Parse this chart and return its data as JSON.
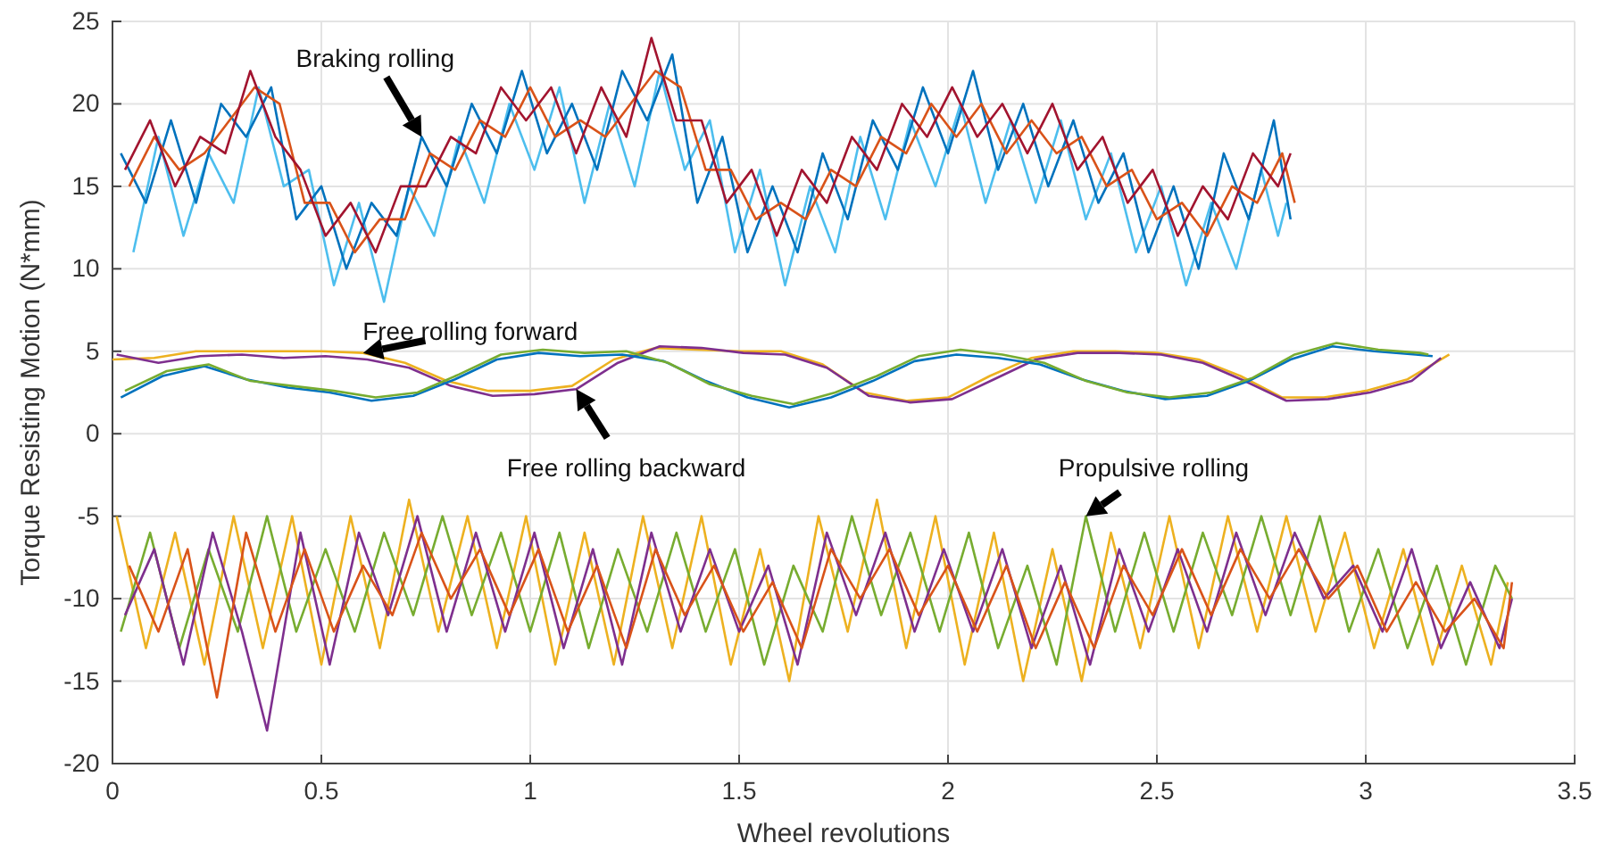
{
  "chart_data": {
    "type": "line",
    "xlabel": "Wheel revolutions",
    "ylabel": "Torque Resisting Motion (N*mm)",
    "xlim": [
      0,
      3.5
    ],
    "xticks": [
      0,
      0.5,
      1,
      1.5,
      2,
      2.5,
      3,
      3.5
    ],
    "ylim": [
      -20,
      25
    ],
    "yticks": [
      -20,
      -15,
      -10,
      -5,
      0,
      5,
      10,
      15,
      20,
      25
    ],
    "grid": true,
    "line_style": "solid",
    "marker": "none",
    "annotations": [
      {
        "text": "Braking rolling",
        "x": 0.74,
        "y": 18
      },
      {
        "text": "Free rolling forward",
        "x": 0.6,
        "y": 4.9
      },
      {
        "text": "Free rolling backward",
        "x": 1.11,
        "y": 2.7
      },
      {
        "text": "Propulsive rolling",
        "x": 2.33,
        "y": -5
      }
    ],
    "series": [
      {
        "color": "#4dbeee",
        "x": [
          0.05,
          0.11,
          0.17,
          0.23,
          0.29,
          0.35,
          0.41,
          0.47,
          0.53,
          0.59,
          0.65,
          0.71,
          0.77,
          0.83,
          0.89,
          0.95,
          1.01,
          1.07,
          1.13,
          1.19,
          1.25,
          1.31,
          1.37,
          1.43,
          1.49,
          1.55,
          1.61,
          1.67,
          1.73,
          1.79,
          1.85,
          1.91,
          1.97,
          2.03,
          2.09,
          2.15,
          2.21,
          2.27,
          2.33,
          2.39,
          2.45,
          2.51,
          2.57,
          2.63,
          2.69,
          2.75,
          2.79,
          2.81
        ],
        "values": [
          11,
          18,
          12,
          17,
          14,
          21,
          15,
          16,
          9,
          14,
          8,
          15,
          12,
          18,
          14,
          20,
          16,
          21,
          14,
          20,
          15,
          22,
          16,
          19,
          11,
          16,
          9,
          15,
          11,
          18,
          13,
          19,
          15,
          20,
          14,
          19,
          14,
          19,
          13,
          17,
          11,
          15,
          9,
          14,
          10,
          16,
          12,
          14
        ]
      },
      {
        "color": "#0072bd",
        "x": [
          0.02,
          0.08,
          0.14,
          0.2,
          0.26,
          0.32,
          0.38,
          0.44,
          0.5,
          0.56,
          0.62,
          0.68,
          0.74,
          0.8,
          0.86,
          0.92,
          0.98,
          1.04,
          1.1,
          1.16,
          1.22,
          1.28,
          1.34,
          1.4,
          1.46,
          1.52,
          1.58,
          1.64,
          1.7,
          1.76,
          1.82,
          1.88,
          1.94,
          2.0,
          2.06,
          2.12,
          2.18,
          2.24,
          2.3,
          2.36,
          2.42,
          2.48,
          2.54,
          2.6,
          2.66,
          2.72,
          2.78,
          2.82
        ],
        "values": [
          17,
          14,
          19,
          14,
          20,
          18,
          21,
          13,
          15,
          10,
          14,
          12,
          18,
          15,
          20,
          17,
          22,
          17,
          20,
          16,
          22,
          19,
          23,
          14,
          18,
          11,
          15,
          11,
          17,
          13,
          19,
          16,
          21,
          17,
          22,
          16,
          20,
          15,
          19,
          14,
          17,
          11,
          15,
          10,
          17,
          13,
          19,
          13
        ]
      },
      {
        "color": "#d95319",
        "x": [
          0.04,
          0.1,
          0.16,
          0.22,
          0.28,
          0.34,
          0.4,
          0.46,
          0.52,
          0.58,
          0.64,
          0.7,
          0.76,
          0.82,
          0.88,
          0.94,
          1.0,
          1.06,
          1.12,
          1.18,
          1.24,
          1.3,
          1.36,
          1.42,
          1.48,
          1.54,
          1.6,
          1.66,
          1.72,
          1.78,
          1.84,
          1.9,
          1.96,
          2.02,
          2.08,
          2.14,
          2.2,
          2.26,
          2.32,
          2.38,
          2.44,
          2.5,
          2.56,
          2.62,
          2.68,
          2.74,
          2.8,
          2.83
        ],
        "values": [
          15,
          18,
          16,
          17,
          19,
          21,
          20,
          14,
          14,
          11,
          13,
          13,
          17,
          16,
          19,
          18,
          21,
          18,
          19,
          18,
          20,
          22,
          21,
          16,
          16,
          13,
          14,
          13,
          16,
          15,
          18,
          17,
          20,
          18,
          20,
          17,
          19,
          17,
          18,
          15,
          16,
          13,
          14,
          12,
          15,
          14,
          17,
          14
        ]
      },
      {
        "color": "#a2142f",
        "x": [
          0.03,
          0.09,
          0.15,
          0.21,
          0.27,
          0.33,
          0.39,
          0.45,
          0.51,
          0.57,
          0.63,
          0.69,
          0.75,
          0.81,
          0.87,
          0.93,
          0.99,
          1.05,
          1.11,
          1.17,
          1.23,
          1.29,
          1.35,
          1.41,
          1.47,
          1.53,
          1.59,
          1.65,
          1.71,
          1.77,
          1.83,
          1.89,
          1.95,
          2.01,
          2.07,
          2.13,
          2.19,
          2.25,
          2.31,
          2.37,
          2.43,
          2.49,
          2.55,
          2.61,
          2.67,
          2.73,
          2.79,
          2.82
        ],
        "values": [
          16,
          19,
          15,
          18,
          17,
          22,
          18,
          16,
          12,
          14,
          11,
          15,
          15,
          18,
          17,
          21,
          19,
          21,
          17,
          21,
          18,
          24,
          19,
          19,
          14,
          16,
          12,
          16,
          14,
          18,
          16,
          20,
          18,
          21,
          18,
          20,
          17,
          20,
          16,
          18,
          14,
          16,
          12,
          15,
          13,
          17,
          15,
          17
        ]
      },
      {
        "color": "#edb120",
        "x": [
          0,
          0.1,
          0.2,
          0.3,
          0.4,
          0.5,
          0.6,
          0.7,
          0.8,
          0.9,
          1.0,
          1.1,
          1.2,
          1.3,
          1.4,
          1.5,
          1.6,
          1.7,
          1.8,
          1.9,
          2.0,
          2.1,
          2.2,
          2.3,
          2.4,
          2.5,
          2.6,
          2.7,
          2.8,
          2.9,
          3.0,
          3.1,
          3.2
        ],
        "values": [
          4.5,
          4.6,
          5.0,
          5.0,
          5.0,
          5.0,
          4.9,
          4.3,
          3.2,
          2.6,
          2.6,
          2.9,
          4.5,
          5.2,
          5.1,
          5.0,
          5.0,
          4.2,
          2.5,
          2.0,
          2.2,
          3.5,
          4.6,
          5.0,
          5.0,
          4.9,
          4.5,
          3.5,
          2.2,
          2.2,
          2.6,
          3.3,
          4.8
        ]
      },
      {
        "color": "#7e2f8e",
        "x": [
          0.01,
          0.11,
          0.21,
          0.31,
          0.41,
          0.51,
          0.61,
          0.71,
          0.81,
          0.91,
          1.01,
          1.11,
          1.21,
          1.31,
          1.41,
          1.51,
          1.61,
          1.71,
          1.81,
          1.91,
          2.01,
          2.11,
          2.21,
          2.31,
          2.41,
          2.51,
          2.61,
          2.71,
          2.81,
          2.91,
          3.01,
          3.11,
          3.18
        ],
        "values": [
          4.8,
          4.3,
          4.7,
          4.8,
          4.6,
          4.7,
          4.5,
          4.0,
          2.9,
          2.3,
          2.4,
          2.7,
          4.3,
          5.3,
          5.2,
          4.9,
          4.8,
          4.0,
          2.3,
          1.9,
          2.1,
          3.3,
          4.5,
          4.9,
          4.9,
          4.8,
          4.3,
          3.2,
          2.0,
          2.1,
          2.5,
          3.2,
          4.6
        ]
      },
      {
        "color": "#0072bd",
        "x": [
          0.02,
          0.12,
          0.22,
          0.32,
          0.42,
          0.52,
          0.62,
          0.72,
          0.82,
          0.92,
          1.02,
          1.12,
          1.22,
          1.32,
          1.42,
          1.52,
          1.62,
          1.72,
          1.82,
          1.92,
          2.02,
          2.12,
          2.22,
          2.32,
          2.42,
          2.52,
          2.62,
          2.72,
          2.82,
          2.92,
          3.02,
          3.12,
          3.16
        ],
        "values": [
          2.2,
          3.5,
          4.1,
          3.3,
          2.8,
          2.5,
          2.0,
          2.3,
          3.3,
          4.5,
          4.9,
          4.7,
          4.8,
          4.4,
          3.2,
          2.2,
          1.6,
          2.2,
          3.2,
          4.4,
          4.8,
          4.6,
          4.2,
          3.3,
          2.6,
          2.1,
          2.3,
          3.2,
          4.5,
          5.3,
          5.0,
          4.8,
          4.7
        ]
      },
      {
        "color": "#77ac30",
        "x": [
          0.03,
          0.13,
          0.23,
          0.33,
          0.43,
          0.53,
          0.63,
          0.73,
          0.83,
          0.93,
          1.03,
          1.13,
          1.23,
          1.33,
          1.43,
          1.53,
          1.63,
          1.73,
          1.83,
          1.93,
          2.03,
          2.13,
          2.23,
          2.33,
          2.43,
          2.53,
          2.63,
          2.73,
          2.83,
          2.93,
          3.03,
          3.13,
          3.15
        ],
        "values": [
          2.6,
          3.8,
          4.2,
          3.2,
          2.9,
          2.6,
          2.2,
          2.5,
          3.6,
          4.8,
          5.1,
          4.9,
          5.0,
          4.3,
          3.0,
          2.3,
          1.8,
          2.5,
          3.5,
          4.7,
          5.1,
          4.8,
          4.3,
          3.2,
          2.5,
          2.2,
          2.5,
          3.4,
          4.8,
          5.5,
          5.1,
          4.9,
          4.8
        ]
      },
      {
        "color": "#edb120",
        "x": [
          0.01,
          0.08,
          0.15,
          0.22,
          0.29,
          0.36,
          0.43,
          0.5,
          0.57,
          0.64,
          0.71,
          0.78,
          0.85,
          0.92,
          0.99,
          1.06,
          1.13,
          1.2,
          1.27,
          1.34,
          1.41,
          1.48,
          1.55,
          1.62,
          1.69,
          1.76,
          1.83,
          1.9,
          1.97,
          2.04,
          2.11,
          2.18,
          2.25,
          2.32,
          2.39,
          2.46,
          2.53,
          2.6,
          2.67,
          2.74,
          2.81,
          2.88,
          2.95,
          3.02,
          3.09,
          3.16,
          3.23,
          3.3,
          3.34
        ],
        "values": [
          -5,
          -13,
          -6,
          -14,
          -5,
          -13,
          -5,
          -14,
          -5,
          -13,
          -4,
          -12,
          -5,
          -13,
          -5,
          -14,
          -6,
          -14,
          -5,
          -13,
          -5,
          -14,
          -7,
          -15,
          -5,
          -12,
          -4,
          -13,
          -5,
          -14,
          -6,
          -15,
          -7,
          -15,
          -6,
          -13,
          -5,
          -13,
          -5,
          -12,
          -5,
          -12,
          -6,
          -13,
          -7,
          -14,
          -8,
          -14,
          -9
        ]
      },
      {
        "color": "#77ac30",
        "x": [
          0.02,
          0.09,
          0.16,
          0.23,
          0.3,
          0.37,
          0.44,
          0.51,
          0.58,
          0.65,
          0.72,
          0.79,
          0.86,
          0.93,
          1.0,
          1.07,
          1.14,
          1.21,
          1.28,
          1.35,
          1.42,
          1.49,
          1.56,
          1.63,
          1.7,
          1.77,
          1.84,
          1.91,
          1.98,
          2.05,
          2.12,
          2.19,
          2.26,
          2.33,
          2.4,
          2.47,
          2.54,
          2.61,
          2.68,
          2.75,
          2.82,
          2.89,
          2.96,
          3.03,
          3.1,
          3.17,
          3.24,
          3.31,
          3.35
        ],
        "values": [
          -12,
          -6,
          -13,
          -7,
          -12,
          -5,
          -12,
          -7,
          -12,
          -6,
          -11,
          -5,
          -11,
          -6,
          -12,
          -6,
          -13,
          -7,
          -12,
          -6,
          -12,
          -7,
          -14,
          -8,
          -12,
          -5,
          -11,
          -6,
          -12,
          -6,
          -13,
          -8,
          -14,
          -5,
          -12,
          -6,
          -12,
          -6,
          -11,
          -5,
          -11,
          -5,
          -12,
          -7,
          -13,
          -8,
          -14,
          -8,
          -10
        ]
      },
      {
        "color": "#7e2f8e",
        "x": [
          0.03,
          0.1,
          0.17,
          0.24,
          0.31,
          0.37,
          0.45,
          0.52,
          0.59,
          0.66,
          0.73,
          0.8,
          0.87,
          0.94,
          1.01,
          1.08,
          1.15,
          1.22,
          1.29,
          1.36,
          1.43,
          1.5,
          1.57,
          1.64,
          1.71,
          1.78,
          1.85,
          1.92,
          1.99,
          2.06,
          2.13,
          2.2,
          2.27,
          2.34,
          2.41,
          2.48,
          2.55,
          2.62,
          2.69,
          2.76,
          2.83,
          2.9,
          2.97,
          3.04,
          3.11,
          3.18,
          3.25,
          3.32,
          3.35
        ],
        "values": [
          -11,
          -7,
          -14,
          -6,
          -12,
          -18,
          -6,
          -14,
          -6,
          -11,
          -5,
          -12,
          -6,
          -12,
          -6,
          -13,
          -7,
          -14,
          -6,
          -12,
          -7,
          -12,
          -8,
          -14,
          -6,
          -11,
          -6,
          -12,
          -7,
          -12,
          -7,
          -13,
          -8,
          -14,
          -7,
          -12,
          -7,
          -12,
          -6,
          -11,
          -6,
          -10,
          -8,
          -12,
          -7,
          -13,
          -9,
          -13,
          -10
        ]
      },
      {
        "color": "#d95319",
        "x": [
          0.04,
          0.11,
          0.18,
          0.25,
          0.32,
          0.39,
          0.46,
          0.53,
          0.6,
          0.67,
          0.74,
          0.81,
          0.88,
          0.95,
          1.02,
          1.09,
          1.16,
          1.23,
          1.3,
          1.37,
          1.44,
          1.51,
          1.58,
          1.65,
          1.72,
          1.79,
          1.86,
          1.93,
          2.0,
          2.07,
          2.14,
          2.21,
          2.28,
          2.35,
          2.42,
          2.49,
          2.56,
          2.63,
          2.7,
          2.77,
          2.84,
          2.91,
          2.98,
          3.05,
          3.12,
          3.19,
          3.26,
          3.33,
          3.35
        ],
        "values": [
          -8,
          -12,
          -7,
          -16,
          -6,
          -12,
          -7,
          -12,
          -8,
          -11,
          -6,
          -10,
          -7,
          -11,
          -7,
          -12,
          -8,
          -13,
          -7,
          -11,
          -8,
          -12,
          -9,
          -13,
          -7,
          -10,
          -7,
          -11,
          -8,
          -12,
          -8,
          -13,
          -9,
          -13,
          -8,
          -11,
          -7,
          -11,
          -7,
          -10,
          -7,
          -10,
          -8,
          -12,
          -9,
          -12,
          -10,
          -13,
          -9
        ]
      }
    ]
  }
}
